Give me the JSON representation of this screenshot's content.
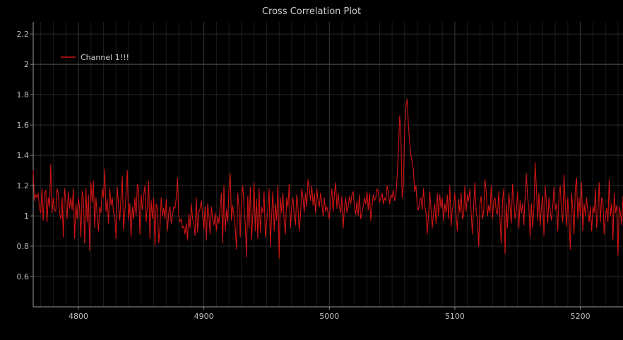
{
  "chart_data": {
    "type": "line",
    "title": "Cross Correlation Plot",
    "xlabel": "",
    "ylabel": "",
    "xlim": [
      4764,
      5234
    ],
    "ylim": [
      0.4,
      2.28
    ],
    "x_ticks": [
      4800,
      4900,
      5000,
      5100,
      5200
    ],
    "y_ticks": [
      0.6,
      0.8,
      1,
      1.2,
      1.4,
      1.6,
      1.8,
      2,
      2.2
    ],
    "y_tick_labels": [
      "0.6",
      "0.8",
      "1",
      "1.2",
      "1.4",
      "1.6",
      "1.8",
      "2",
      "2.2"
    ],
    "grid": true,
    "legend": {
      "placement": "top-left",
      "entries": [
        "Channel 1!!!"
      ]
    },
    "series": [
      {
        "name": "Channel 1!!!",
        "color": "#d01414",
        "x_start": 4764,
        "x_step": 1,
        "values": [
          1.3,
          1.1,
          1.14,
          1.12,
          1.15,
          1.05,
          1.02,
          1.18,
          0.97,
          1.15,
          1.17,
          0.96,
          1.12,
          1.06,
          1.34,
          1.02,
          1.12,
          1.04,
          1.03,
          1.18,
          1.14,
          1.02,
          0.98,
          1.12,
          0.86,
          1.18,
          1.1,
          0.98,
          1.16,
          1.05,
          1.12,
          1.04,
          1.18,
          0.85,
          1.08,
          0.98,
          1.12,
          1.05,
          0.86,
          1.16,
          1.12,
          0.82,
          1.18,
          0.96,
          1.14,
          0.77,
          1.22,
          1.09,
          1.23,
          0.92,
          1.12,
          1.0,
          0.9,
          1.06,
          1.02,
          1.18,
          1.12,
          1.31,
          1.03,
          1.11,
          0.95,
          1.18,
          1.07,
          1.12,
          1.02,
          1.0,
          0.85,
          1.19,
          1.07,
          0.97,
          1.13,
          1.26,
          0.91,
          1.02,
          1.15,
          1.3,
          0.97,
          1.08,
          0.86,
          1.06,
          0.98,
          1.12,
          1.0,
          1.21,
          1.18,
          0.88,
          1.14,
          1.04,
          1.13,
          1.2,
          0.96,
          1.07,
          1.23,
          0.85,
          1.1,
          0.98,
          1.12,
          0.8,
          1.08,
          1.05,
          0.82,
          0.92,
          1.12,
          1.0,
          1.05,
          0.98,
          1.11,
          0.9,
          1.02,
          1.06,
          0.95,
          1.0,
          1.06,
          1.05,
          1.12,
          1.25,
          1.0,
          0.96,
          0.98,
          0.92,
          0.93,
          0.88,
          0.95,
          0.84,
          1.01,
          0.92,
          1.08,
          0.98,
          0.95,
          0.87,
          1.12,
          0.89,
          1.02,
          1.05,
          1.1,
          1.0,
          0.91,
          1.06,
          0.84,
          1.08,
          1.0,
          0.88,
          1.06,
          0.98,
          0.94,
          1.02,
          0.9,
          1.0,
          0.95,
          1.06,
          1.15,
          0.82,
          1.2,
          0.9,
          1.04,
          0.96,
          1.18,
          1.28,
          0.97,
          1.07,
          1.0,
          0.92,
          0.78,
          1.15,
          1.06,
          0.86,
          1.12,
          1.2,
          1.06,
          0.94,
          0.73,
          1.13,
          0.92,
          1.19,
          0.84,
          1.0,
          1.22,
          0.9,
          1.11,
          0.85,
          1.18,
          0.89,
          1.06,
          1.02,
          1.16,
          0.86,
          0.95,
          1.05,
          1.18,
          0.8,
          1.0,
          1.16,
          0.9,
          1.08,
          0.97,
          1.2,
          0.72,
          1.12,
          1.02,
          1.15,
          0.96,
          0.88,
          1.12,
          1.06,
          1.21,
          0.92,
          1.06,
          1.12,
          1.0,
          0.94,
          1.14,
          1.06,
          0.9,
          1.0,
          1.18,
          1.12,
          1.02,
          1.15,
          1.06,
          1.24,
          1.18,
          1.1,
          1.2,
          1.07,
          1.15,
          1.02,
          1.18,
          1.1,
          1.06,
          1.15,
          1.08,
          1.0,
          1.12,
          1.03,
          1.06,
          1.02,
          0.98,
          1.1,
          1.18,
          1.03,
          1.14,
          1.22,
          1.05,
          1.15,
          1.06,
          1.02,
          1.13,
          0.92,
          1.05,
          1.12,
          1.02,
          1.06,
          1.13,
          1.08,
          1.14,
          1.16,
          1.06,
          1.01,
          1.1,
          1.0,
          1.14,
          0.98,
          1.02,
          1.06,
          1.12,
          1.08,
          1.16,
          1.04,
          1.15,
          0.97,
          1.06,
          1.14,
          1.1,
          1.12,
          1.18,
          1.16,
          1.09,
          1.12,
          1.15,
          1.08,
          1.12,
          1.1,
          1.2,
          1.16,
          1.08,
          1.14,
          1.12,
          1.17,
          1.1,
          1.13,
          1.26,
          1.42,
          1.66,
          1.54,
          1.12,
          1.2,
          1.58,
          1.72,
          1.77,
          1.6,
          1.48,
          1.4,
          1.35,
          1.3,
          1.16,
          1.2,
          1.06,
          1.04,
          1.1,
          1.12,
          1.04,
          1.18,
          1.06,
          1.02,
          0.88,
          1.0,
          1.16,
          1.05,
          0.92,
          1.02,
          1.08,
          0.95,
          1.15,
          1.0,
          1.14,
          1.05,
          1.12,
          0.97,
          1.08,
          1.02,
          1.14,
          0.98,
          1.2,
          0.93,
          1.05,
          1.07,
          1.15,
          1.0,
          0.9,
          1.11,
          1.02,
          1.15,
          0.98,
          1.0,
          1.2,
          1.03,
          1.14,
          1.1,
          1.18,
          1.02,
          0.88,
          1.07,
          1.22,
          1.03,
          0.98,
          0.8,
          1.08,
          1.13,
          0.98,
          1.03,
          1.24,
          1.16,
          1.0,
          1.07,
          1.02,
          1.2,
          0.98,
          1.1,
          1.12,
          1.03,
          1.01,
          1.16,
          0.97,
          0.82,
          1.1,
          1.18,
          0.75,
          1.08,
          0.92,
          1.15,
          1.06,
          0.95,
          1.21,
          1.1,
          0.98,
          1.04,
          1.16,
          0.92,
          1.1,
          1.02,
          1.08,
          0.94,
          1.14,
          1.28,
          1.12,
          1.06,
          0.86,
          1.08,
          0.92,
          1.05,
          1.35,
          1.18,
          0.97,
          1.15,
          0.93,
          1.06,
          1.13,
          0.87,
          1.2,
          1.08,
          0.95,
          1.12,
          1.04,
          0.97,
          1.06,
          1.19,
          1.04,
          1.08,
          0.9,
          1.14,
          1.2,
          1.02,
          0.96,
          1.27,
          1.08,
          0.93,
          1.12,
          0.97,
          0.78,
          1.15,
          1.05,
          0.88,
          1.18,
          1.25,
          0.98,
          1.12,
          1.0,
          1.22,
          0.9,
          1.08,
          1.0,
          1.12,
          1.03,
          0.96,
          1.06,
          0.9,
          1.06,
          1.02,
          1.18,
          0.92,
          1.02,
          1.22,
          0.96,
          1.12,
          1.1,
          0.88,
          1.0,
          1.05,
          0.96,
          1.24,
          1.0,
          1.08,
          0.84,
          1.15,
          1.02,
          1.07,
          0.74,
          1.06,
          1.02,
          0.94,
          1.13,
          1.0,
          1.08,
          1.22,
          1.1,
          0.96,
          1.05,
          1.01,
          1.07,
          0.93,
          1.04,
          1.08,
          0.98,
          1.13,
          1.06,
          0.95,
          1.12,
          1.02,
          1.1,
          1.18,
          1.0,
          1.08,
          1.0,
          1.04,
          0.93,
          1.08,
          1.01,
          1.15,
          0.95,
          1.1,
          0.9,
          1.08,
          1.0,
          1.02,
          1.12,
          1.04,
          1.14,
          0.98,
          1.02,
          1.08,
          0.95,
          1.04,
          0.88,
          1.05,
          1.18,
          1.02,
          1.08,
          1.1,
          0.92,
          1.0,
          1.06,
          1.12,
          0.95,
          1.18,
          1.09,
          0.91,
          1.02,
          1.12,
          1.05,
          0.94,
          1.18,
          1.02,
          1.1,
          0.96,
          1.14,
          1.0,
          1.2,
          1.1,
          1.05,
          1.12,
          0.98,
          1.08,
          0.92,
          1.05,
          1.01,
          1.06,
          1.09,
          1.03,
          0.95,
          1.05,
          0.87,
          1.06,
          1.0,
          0.96,
          1.09,
          1.04,
          0.86,
          1.0,
          0.95,
          0.98,
          1.1,
          0.92,
          1.0,
          0.85,
          1.03,
          0.88,
          0.92
        ]
      }
    ]
  }
}
